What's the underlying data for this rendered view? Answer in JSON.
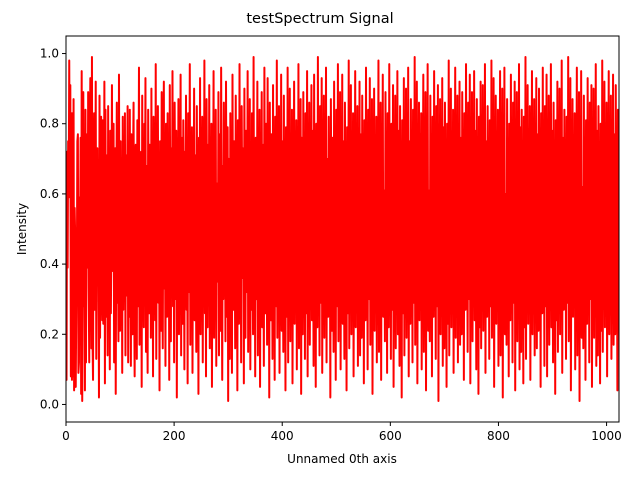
{
  "title": "testSpectrum Signal",
  "chart_data": {
    "type": "line",
    "title": "testSpectrum Signal",
    "xlabel": "Unnamed 0th axis",
    "ylabel": "Intensity",
    "xlim": [
      0,
      1023
    ],
    "ylim": [
      -0.05,
      1.05
    ],
    "x_ticks": [
      0,
      200,
      400,
      600,
      800,
      1000
    ],
    "x_tick_labels": [
      "0",
      "200",
      "400",
      "600",
      "800",
      "1000"
    ],
    "y_ticks": [
      0.0,
      0.2,
      0.4,
      0.6,
      0.8,
      1.0
    ],
    "y_tick_labels": [
      "0.0",
      "0.2",
      "0.4",
      "0.6",
      "0.8",
      "1.0"
    ],
    "grid": false,
    "legend": null,
    "series": [
      {
        "name": "testSpectrum",
        "color": "#ff0000",
        "n_points": 1024,
        "value_range": [
          0.0,
          1.0
        ],
        "values": [
          0.69,
          0.07,
          0.72,
          0.39,
          0.75,
          0.59,
          0.98,
          0.6,
          0.91,
          0.08,
          0.83,
          0.07,
          0.83,
          0.08,
          0.87,
          0.04,
          0.56,
          0.48,
          0.05,
          0.28,
          0.32,
          0.75,
          0.77,
          0.09,
          0.12,
          0.59,
          0.46,
          0.76,
          0.03,
          0.95,
          0.01,
          0.35,
          0.89,
          0.28,
          0.71,
          0.04,
          0.84,
          0.12,
          0.6,
          0.77,
          0.39,
          0.89,
          0.33,
          0.12,
          0.75,
          0.93,
          0.49,
          0.16,
          0.99,
          0.19,
          0.07,
          0.62,
          0.83,
          0.27,
          0.41,
          0.92,
          0.13,
          0.53,
          0.73,
          0.34,
          0.44,
          0.02,
          0.88,
          0.19,
          0.58,
          0.82,
          0.37,
          0.24,
          0.81,
          0.23,
          0.47,
          0.92,
          0.06,
          0.84,
          0.25,
          0.71,
          0.55,
          0.14,
          0.85,
          0.33,
          0.64,
          0.1,
          0.78,
          0.26,
          0.49,
          0.91,
          0.42,
          0.38,
          0.8,
          0.12,
          0.66,
          0.73,
          0.03,
          0.52,
          0.86,
          0.29,
          0.57,
          0.18,
          0.94,
          0.45,
          0.21,
          0.75,
          0.36,
          0.63,
          0.09,
          0.82,
          0.27,
          0.61,
          0.47,
          0.83,
          0.14,
          0.71,
          0.31,
          0.58,
          0.85,
          0.12,
          0.67,
          0.25,
          0.84,
          0.4,
          0.11,
          0.77,
          0.52,
          0.2,
          0.69,
          0.86,
          0.33,
          0.08,
          0.59,
          0.74,
          0.44,
          0.13,
          0.81,
          0.28,
          0.55,
          0.96,
          0.17,
          0.63,
          0.39,
          0.72,
          0.05,
          0.88,
          0.31,
          0.57,
          0.22,
          0.8,
          0.46,
          0.93,
          0.15,
          0.68,
          0.36,
          0.09,
          0.84,
          0.5,
          0.26,
          0.74,
          0.61,
          0.19,
          0.9,
          0.35,
          0.64,
          0.08,
          0.82,
          0.42,
          0.71,
          0.24,
          0.97,
          0.13,
          0.58,
          0.38,
          0.85,
          0.29,
          0.66,
          0.04,
          0.75,
          0.53,
          0.21,
          0.89,
          0.44,
          0.16,
          0.7,
          0.92,
          0.33,
          0.59,
          0.11,
          0.8,
          0.47,
          0.25,
          0.83,
          0.37,
          0.62,
          0.07,
          0.91,
          0.51,
          0.18,
          0.73,
          0.4,
          0.95,
          0.28,
          0.65,
          0.12,
          0.86,
          0.55,
          0.3,
          0.78,
          0.02,
          0.69,
          0.43,
          0.87,
          0.2,
          0.6,
          0.35,
          0.94,
          0.14,
          0.76,
          0.48,
          0.23,
          0.81,
          0.57,
          0.1,
          0.72,
          0.39,
          0.88,
          0.27,
          0.64,
          0.06,
          0.83,
          0.5,
          0.32,
          0.97,
          0.17,
          0.67,
          0.44,
          0.79,
          0.09,
          0.58,
          0.36,
          0.9,
          0.24,
          0.71,
          0.52,
          0.15,
          0.85,
          0.41,
          0.63,
          0.03,
          0.76,
          0.31,
          0.93,
          0.2,
          0.56,
          0.46,
          0.82,
          0.12,
          0.69,
          0.37,
          0.98,
          0.26,
          0.61,
          0.08,
          0.87,
          0.49,
          0.22,
          0.74,
          0.4,
          0.91,
          0.16,
          0.66,
          0.33,
          0.8,
          0.05,
          0.59,
          0.45,
          0.95,
          0.19,
          0.72,
          0.28,
          0.84,
          0.11,
          0.63,
          0.54,
          0.35,
          0.89,
          0.14,
          0.77,
          0.42,
          0.21,
          0.96,
          0.5,
          0.07,
          0.68,
          0.3,
          0.86,
          0.38,
          0.62,
          0.18,
          0.92,
          0.47,
          0.25,
          0.79,
          0.01,
          0.7,
          0.56,
          0.13,
          0.83,
          0.34,
          0.65,
          0.09,
          0.94,
          0.43,
          0.27,
          0.75,
          0.52,
          0.16,
          0.88,
          0.39,
          0.6,
          0.04,
          0.81,
          0.48,
          0.23,
          0.97,
          0.29,
          0.67,
          0.12,
          0.85,
          0.55,
          0.36,
          0.73,
          0.06,
          0.9,
          0.41,
          0.19,
          0.78,
          0.58,
          0.32,
          0.95,
          0.15,
          0.64,
          0.45,
          0.87,
          0.1,
          0.7,
          0.27,
          0.83,
          0.53,
          0.2,
          0.99,
          0.37,
          0.61,
          0.08,
          0.76,
          0.49,
          0.3,
          0.92,
          0.14,
          0.68,
          0.4,
          0.84,
          0.05,
          0.57,
          0.35,
          0.89,
          0.22,
          0.74,
          0.51,
          0.11,
          0.96,
          0.44,
          0.26,
          0.8,
          0.62,
          0.17,
          0.93,
          0.33,
          0.69,
          0.02,
          0.86,
          0.46,
          0.24,
          0.77,
          0.54,
          0.13,
          0.91,
          0.38,
          0.65,
          0.07,
          0.82,
          0.5,
          0.28,
          0.98,
          0.19,
          0.71,
          0.42,
          0.85,
          0.09,
          0.6,
          0.32,
          0.94,
          0.21,
          0.75,
          0.47,
          0.15,
          0.88,
          0.36,
          0.63,
          0.04,
          0.79,
          0.55,
          0.25,
          0.96,
          0.12,
          0.67,
          0.43,
          0.9,
          0.18,
          0.73,
          0.3,
          0.84,
          0.06,
          0.58,
          0.49,
          0.92,
          0.23,
          0.7,
          0.38,
          0.81,
          0.1,
          0.65,
          0.27,
          0.97,
          0.16,
          0.62,
          0.45,
          0.87,
          0.03,
          0.76,
          0.52,
          0.2,
          0.89,
          0.34,
          0.69,
          0.13,
          0.83,
          0.48,
          0.26,
          0.95,
          0.08,
          0.72,
          0.4,
          0.86,
          0.17,
          0.61,
          0.35,
          0.91,
          0.24,
          0.78,
          0.56,
          0.11,
          0.94,
          0.31,
          0.66,
          0.05,
          0.8,
          0.46,
          0.22,
          0.99,
          0.37,
          0.59,
          0.14,
          0.85,
          0.51,
          0.29,
          0.93,
          0.09,
          0.74,
          0.42,
          0.88,
          0.19,
          0.64,
          0.33,
          0.96,
          0.12,
          0.7,
          0.53,
          0.25,
          0.82,
          0.39,
          0.62,
          0.02,
          0.87,
          0.47,
          0.21,
          0.76,
          0.57,
          0.15,
          0.92,
          0.35,
          0.68,
          0.07,
          0.84,
          0.44,
          0.28,
          0.97,
          0.18,
          0.71,
          0.4,
          0.89,
          0.1,
          0.6,
          0.31,
          0.94,
          0.23,
          0.75,
          0.5,
          0.13,
          0.86,
          0.37,
          0.65,
          0.04,
          0.79,
          0.54,
          0.26,
          0.98,
          0.16,
          0.67,
          0.43,
          0.91,
          0.2,
          0.73,
          0.29,
          0.83,
          0.08,
          0.58,
          0.48,
          0.95,
          0.22,
          0.69,
          0.36,
          0.85,
          0.11,
          0.63,
          0.27,
          0.92,
          0.14,
          0.77,
          0.52,
          0.19,
          0.88,
          0.41,
          0.66,
          0.06,
          0.81,
          0.45,
          0.24,
          0.96,
          0.33,
          0.61,
          0.1,
          0.84,
          0.55,
          0.3,
          0.93,
          0.17,
          0.72,
          0.38,
          0.87,
          0.03,
          0.59,
          0.46,
          0.9,
          0.21,
          0.74,
          0.32,
          0.82,
          0.12,
          0.68,
          0.5,
          0.98,
          0.15,
          0.64,
          0.42,
          0.86,
          0.07,
          0.76,
          0.28,
          0.94,
          0.25,
          0.61,
          0.53,
          0.18,
          0.89,
          0.35,
          0.7,
          0.09,
          0.83,
          0.47,
          0.22,
          0.97,
          0.39,
          0.65,
          0.13,
          0.8,
          0.56,
          0.27,
          0.91,
          0.05,
          0.73,
          0.44,
          0.88,
          0.16,
          0.62,
          0.34,
          0.95,
          0.2,
          0.78,
          0.49,
          0.11,
          0.85,
          0.37,
          0.67,
          0.02,
          0.81,
          0.52,
          0.26,
          0.93,
          0.14,
          0.71,
          0.41,
          0.9,
          0.19,
          0.6,
          0.3,
          0.96,
          0.08,
          0.75,
          0.55,
          0.23,
          0.87,
          0.43,
          0.64,
          0.12,
          0.84,
          0.46,
          0.29,
          0.99,
          0.17,
          0.69,
          0.36,
          0.92,
          0.06,
          0.58,
          0.48,
          0.86,
          0.24,
          0.77,
          0.33,
          0.83,
          0.1,
          0.66,
          0.51,
          0.94,
          0.15,
          0.63,
          0.4,
          0.89,
          0.04,
          0.74,
          0.27,
          0.97,
          0.21,
          0.61,
          0.54,
          0.18,
          0.88,
          0.38,
          0.7,
          0.08,
          0.82,
          0.45,
          0.25,
          0.95,
          0.32,
          0.67,
          0.13,
          0.85,
          0.57,
          0.28,
          0.91,
          0.01,
          0.72,
          0.42,
          0.87,
          0.2,
          0.65,
          0.35,
          0.93,
          0.11,
          0.79,
          0.5,
          0.16,
          0.86,
          0.39,
          0.62,
          0.05,
          0.8,
          0.53,
          0.23,
          0.98,
          0.14,
          0.68,
          0.44,
          0.9,
          0.22,
          0.74,
          0.31,
          0.84,
          0.09,
          0.59,
          0.47,
          0.96,
          0.19,
          0.71,
          0.37,
          0.88,
          0.12,
          0.64,
          0.26,
          0.92,
          0.17,
          0.76,
          0.55,
          0.2,
          0.89,
          0.41,
          0.66,
          0.07,
          0.83,
          0.46,
          0.27,
          0.97,
          0.34,
          0.6,
          0.15,
          0.86,
          0.52,
          0.3,
          0.94,
          0.06,
          0.73,
          0.43,
          0.89,
          0.18,
          0.63,
          0.33,
          0.95,
          0.24,
          0.78,
          0.49,
          0.1,
          0.87,
          0.36,
          0.69,
          0.03,
          0.82,
          0.54,
          0.22,
          0.92,
          0.16,
          0.7,
          0.4,
          0.91,
          0.21,
          0.61,
          0.29,
          0.97,
          0.09,
          0.75,
          0.56,
          0.25,
          0.85,
          0.42,
          0.65,
          0.13,
          0.81,
          0.48,
          0.28,
          0.98,
          0.19,
          0.67,
          0.35,
          0.93,
          0.05,
          0.59,
          0.5,
          0.88,
          0.23,
          0.76,
          0.32,
          0.84,
          0.11,
          0.64,
          0.53,
          0.95,
          0.14,
          0.62,
          0.39,
          0.9,
          0.02,
          0.74,
          0.26,
          0.96,
          0.2,
          0.6,
          0.55,
          0.17,
          0.87,
          0.37,
          0.71,
          0.08,
          0.8,
          0.45,
          0.24,
          0.94,
          0.31,
          0.68,
          0.12,
          0.86,
          0.58,
          0.29,
          0.92,
          0.04,
          0.72,
          0.41,
          0.89,
          0.18,
          0.66,
          0.34,
          0.97,
          0.1,
          0.79,
          0.51,
          0.15,
          0.84,
          0.38,
          0.63,
          0.06,
          0.82,
          0.54,
          0.22,
          0.99,
          0.13,
          0.69,
          0.43,
          0.91,
          0.23,
          0.75,
          0.3,
          0.85,
          0.07,
          0.58,
          0.47,
          0.95,
          0.2,
          0.7,
          0.36,
          0.87,
          0.14,
          0.65,
          0.27,
          0.93,
          0.16,
          0.77,
          0.56,
          0.21,
          0.9,
          0.4,
          0.67,
          0.05,
          0.83,
          0.48,
          0.26,
          0.96,
          0.33,
          0.61,
          0.11,
          0.85,
          0.52,
          0.28,
          0.94,
          0.08,
          0.73,
          0.44,
          0.88,
          0.17,
          0.62,
          0.32,
          0.97,
          0.22,
          0.78,
          0.5,
          0.12,
          0.86,
          0.35,
          0.68,
          0.03,
          0.81,
          0.53,
          0.24,
          0.92,
          0.15,
          0.71,
          0.39,
          0.9,
          0.2,
          0.6,
          0.3,
          0.98,
          0.09,
          0.76,
          0.55,
          0.27,
          0.84,
          0.42,
          0.64,
          0.13,
          0.82,
          0.47,
          0.29,
          0.99,
          0.18,
          0.66,
          0.36,
          0.93,
          0.04,
          0.59,
          0.49,
          0.87,
          0.25,
          0.74,
          0.31,
          0.83,
          0.1,
          0.63,
          0.54,
          0.96,
          0.14,
          0.61,
          0.4,
          0.89,
          0.01,
          0.75,
          0.27,
          0.95,
          0.19,
          0.62,
          0.56,
          0.16,
          0.88,
          0.38,
          0.7,
          0.07,
          0.81,
          0.46,
          0.23,
          0.93,
          0.32,
          0.67,
          0.12,
          0.86,
          0.57,
          0.3,
          0.91,
          0.05,
          0.73,
          0.42,
          0.9,
          0.19,
          0.65,
          0.35,
          0.97,
          0.11,
          0.78,
          0.52,
          0.14,
          0.85,
          0.37,
          0.64,
          0.06,
          0.8,
          0.55,
          0.21,
          0.98,
          0.15,
          0.68,
          0.44,
          0.92,
          0.22,
          0.74,
          0.29,
          0.86,
          0.08,
          0.6,
          0.46,
          0.95,
          0.2,
          0.71,
          0.38,
          0.88,
          0.13,
          0.64,
          0.26,
          0.94,
          0.17,
          0.77,
          0.55,
          0.2,
          0.91,
          0.41,
          0.66,
          0.04,
          0.84,
          0.48,
          0.27,
          0.96,
          0.33,
          0.62,
          0.1,
          0.86,
          0.53,
          0.29,
          0.94,
          0.07,
          0.74,
          0.45,
          0.89,
          0.17,
          0.63,
          0.33,
          0.98,
          0.23,
          0.79,
          0.49,
          0.11,
          0.87,
          0.36,
          0.69,
          0.03,
          0.82,
          0.54,
          0.25,
          0.93,
          0.16,
          0.72,
          0.4,
          0.98,
          0.85,
          0.59,
          0.93,
          0.06,
          0.96,
          0.17,
          0.83,
          0.04
        ]
      }
    ]
  }
}
